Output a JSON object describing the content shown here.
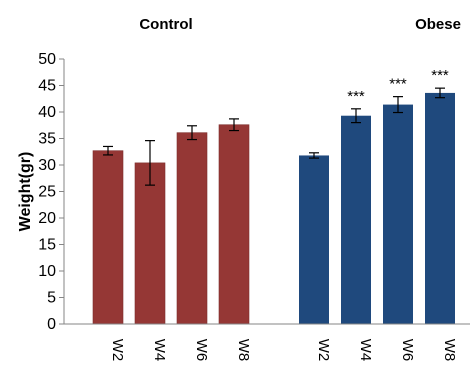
{
  "chart_data": {
    "type": "bar",
    "title": "",
    "xlabel": "",
    "ylabel": "Weight(gr)",
    "ylim": [
      0,
      50
    ],
    "yticks": [
      0,
      5,
      10,
      15,
      20,
      25,
      30,
      35,
      40,
      45,
      50
    ],
    "grid": false,
    "groups": [
      {
        "name": "Control",
        "color": "#953735",
        "categories": [
          "W2",
          "W4",
          "W6",
          "W8"
        ],
        "values": [
          32.7,
          30.4,
          36.1,
          37.6
        ],
        "errors": [
          0.8,
          4.2,
          1.3,
          1.1
        ],
        "significance": [
          "",
          "",
          "",
          ""
        ]
      },
      {
        "name": "Obese",
        "color": "#1F497D",
        "categories": [
          "W2",
          "W4",
          "W6",
          "W8"
        ],
        "values": [
          31.8,
          39.3,
          41.4,
          43.6
        ],
        "errors": [
          0.5,
          1.3,
          1.5,
          0.9
        ],
        "significance": [
          "",
          "***",
          "***",
          "***"
        ]
      }
    ]
  }
}
